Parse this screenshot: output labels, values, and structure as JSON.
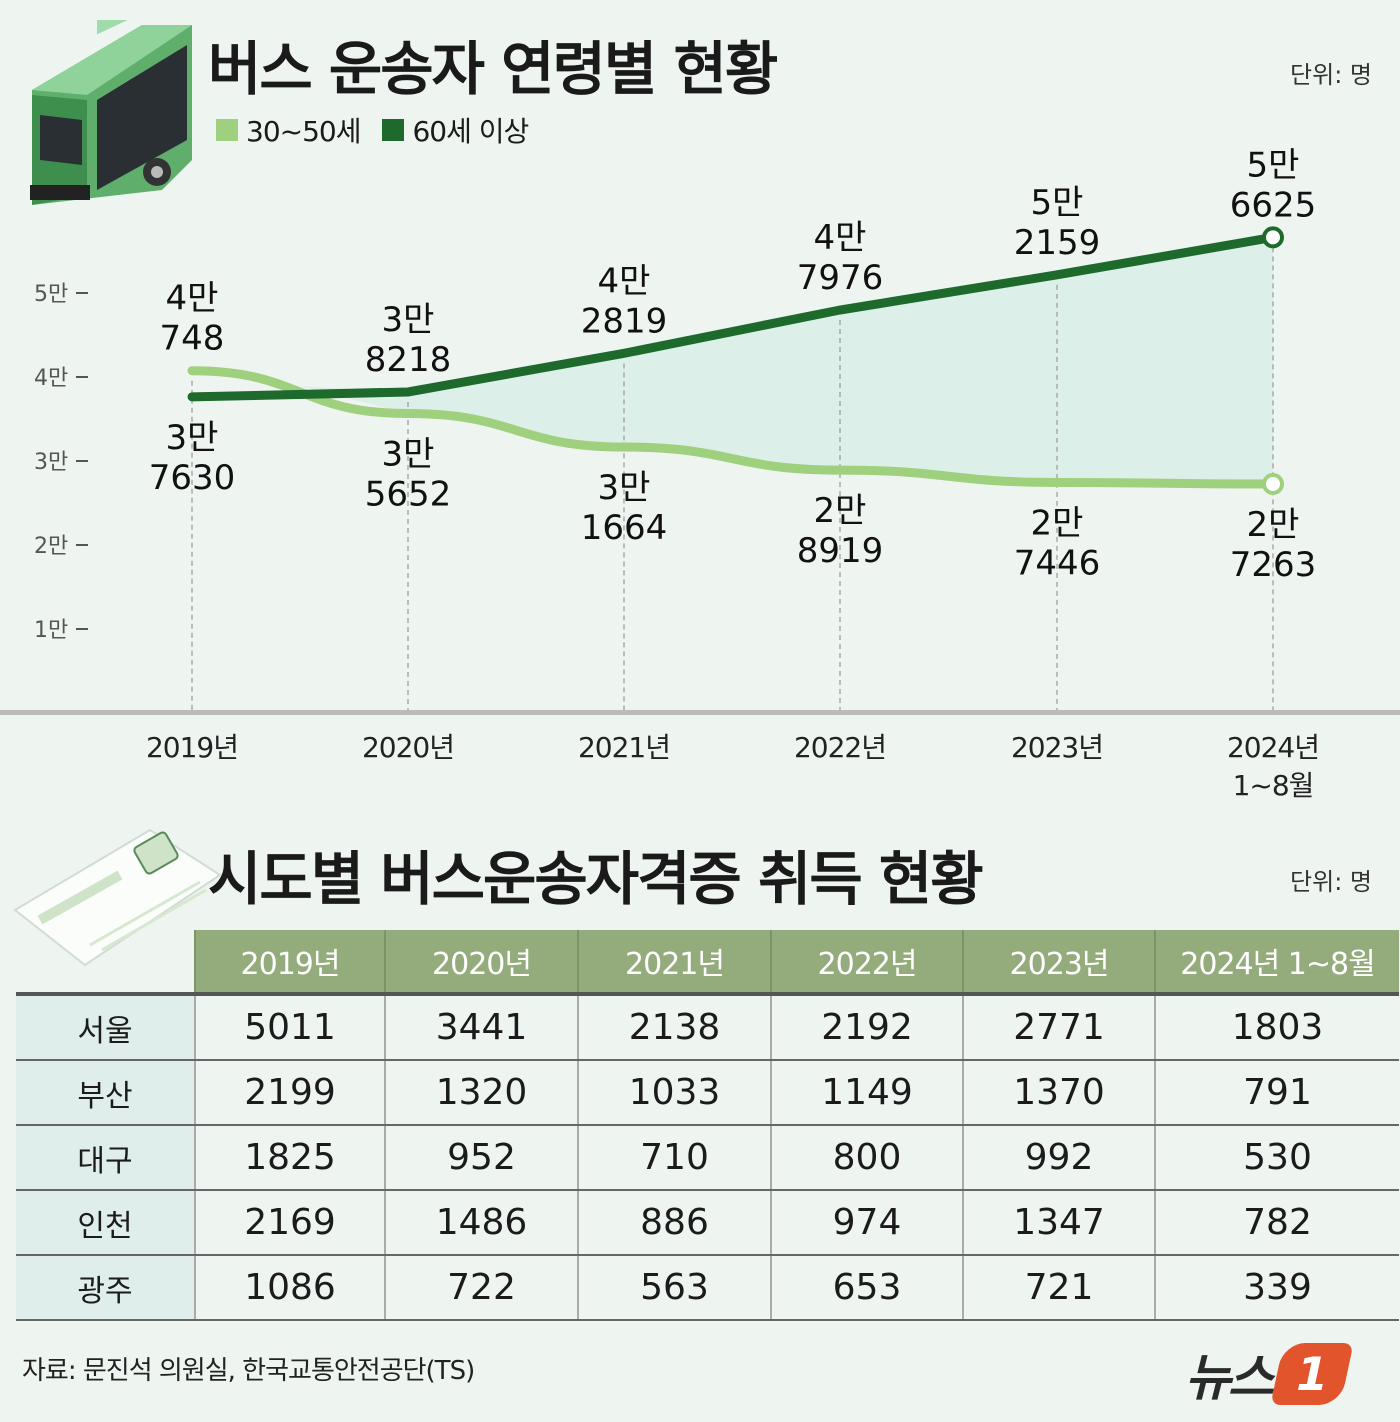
{
  "chart_title": "버스 운송자 연령별 현황",
  "chart_unit": "단위: 명",
  "table_title": "시도별 버스운송자격증 취득 현황",
  "table_unit": "단위: 명",
  "source": "자료: 문진석 의원실, 한국교통안전공단(TS)",
  "logo_text": "뉴스1",
  "colors": {
    "light_series": "#9fd07e",
    "dark_series": "#1d6a2c",
    "fill": "#dcefe8",
    "table_header": "#94ab7c",
    "logo": "#e2542b"
  },
  "chart_data": {
    "type": "line",
    "categories": [
      "2019년",
      "2020년",
      "2021년",
      "2022년",
      "2023년",
      "2024년 1~8월"
    ],
    "yticks": [
      "1만",
      "2만",
      "3만",
      "4만",
      "5만"
    ],
    "ytick_values": [
      10000,
      20000,
      30000,
      40000,
      50000
    ],
    "ylim": [
      0,
      60000
    ],
    "grid": "vertical dashed",
    "legend_position": "top-left",
    "series": [
      {
        "name": "30~50세",
        "color": "#9fd07e",
        "values": [
          40748,
          35652,
          31664,
          28919,
          27446,
          27263
        ],
        "labels": [
          [
            "4만",
            "748"
          ],
          [
            "3만",
            "5652"
          ],
          [
            "3만",
            "1664"
          ],
          [
            "2만",
            "8919"
          ],
          [
            "2만",
            "7446"
          ],
          [
            "2만",
            "7263"
          ]
        ]
      },
      {
        "name": "60세 이상",
        "color": "#1d6a2c",
        "values": [
          37630,
          38218,
          42819,
          47976,
          52159,
          56625
        ],
        "labels": [
          [
            "3만",
            "7630"
          ],
          [
            "3만",
            "8218"
          ],
          [
            "4만",
            "2819"
          ],
          [
            "4만",
            "7976"
          ],
          [
            "5만",
            "2159"
          ],
          [
            "5만",
            "6625"
          ]
        ]
      }
    ]
  },
  "table": {
    "columns": [
      "2019년",
      "2020년",
      "2021년",
      "2022년",
      "2023년",
      "2024년 1~8월"
    ],
    "rows": [
      {
        "region": "서울",
        "values": [
          "5011",
          "3441",
          "2138",
          "2192",
          "2771",
          "1803"
        ]
      },
      {
        "region": "부산",
        "values": [
          "2199",
          "1320",
          "1033",
          "1149",
          "1370",
          "791"
        ]
      },
      {
        "region": "대구",
        "values": [
          "1825",
          "952",
          "710",
          "800",
          "992",
          "530"
        ]
      },
      {
        "region": "인천",
        "values": [
          "2169",
          "1486",
          "886",
          "974",
          "1347",
          "782"
        ]
      },
      {
        "region": "광주",
        "values": [
          "1086",
          "722",
          "563",
          "653",
          "721",
          "339"
        ]
      }
    ]
  }
}
